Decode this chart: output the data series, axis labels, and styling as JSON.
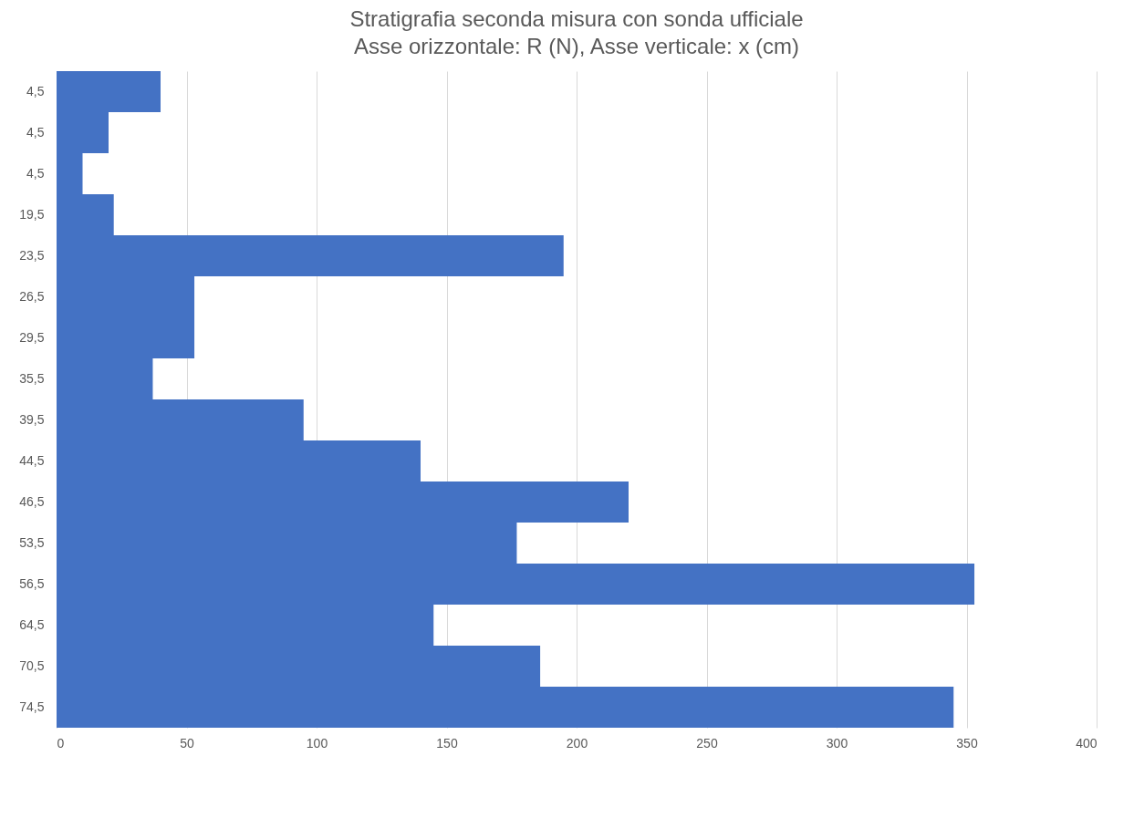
{
  "chart_data": {
    "type": "bar",
    "orientation": "horizontal",
    "title": "Stratigrafia seconda misura con sonda ufficiale",
    "subtitle": "Asse orizzontale: R (N), Asse verticale: x (cm)",
    "categories": [
      "4,5",
      "4,5",
      "4,5",
      "19,5",
      "23,5",
      "26,5",
      "29,5",
      "35,5",
      "39,5",
      "44,5",
      "46,5",
      "53,5",
      "56,5",
      "64,5",
      "70,5",
      "74,5"
    ],
    "values": [
      40,
      20,
      10,
      22,
      195,
      53,
      53,
      37,
      95,
      140,
      220,
      177,
      353,
      145,
      186,
      345
    ],
    "color": "#4472c4",
    "xlim": [
      0,
      400
    ],
    "xticks": [
      0,
      50,
      100,
      150,
      200,
      250,
      300,
      350,
      400
    ],
    "grid": "x"
  }
}
